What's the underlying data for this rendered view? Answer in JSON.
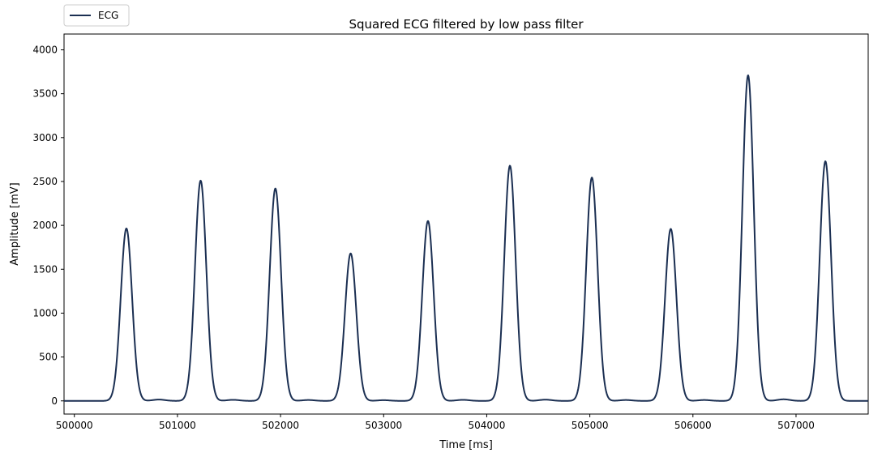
{
  "chart_data": {
    "type": "line",
    "title": "Squared ECG filtered by low pass filter",
    "xlabel": "Time [ms]",
    "ylabel": "Amplitude [mV]",
    "xlim": [
      499900,
      507700
    ],
    "ylim": [
      -150,
      4180
    ],
    "x_ticks": [
      500000,
      501000,
      502000,
      503000,
      504000,
      505000,
      506000,
      507000
    ],
    "y_ticks": [
      0,
      500,
      1000,
      1500,
      2000,
      2500,
      3000,
      3500,
      4000
    ],
    "grid": false,
    "legend": {
      "placement": "top-left",
      "entries": [
        "ECG"
      ]
    },
    "series": [
      {
        "name": "ECG",
        "color": "#1b2f52",
        "baseline": 0,
        "peak_half_width_ms": 55,
        "peaks": [
          {
            "x": 500505,
            "y": 1965
          },
          {
            "x": 501225,
            "y": 2510
          },
          {
            "x": 501950,
            "y": 2420
          },
          {
            "x": 502680,
            "y": 1680
          },
          {
            "x": 503430,
            "y": 2050
          },
          {
            "x": 504225,
            "y": 2680
          },
          {
            "x": 505020,
            "y": 2545
          },
          {
            "x": 505785,
            "y": 1960
          },
          {
            "x": 506535,
            "y": 3710
          },
          {
            "x": 507285,
            "y": 2730
          }
        ],
        "minor_bumps": [
          {
            "x": 500820,
            "y": 15
          },
          {
            "x": 501540,
            "y": 12
          },
          {
            "x": 502270,
            "y": 10
          },
          {
            "x": 503000,
            "y": 8
          },
          {
            "x": 503770,
            "y": 12
          },
          {
            "x": 504570,
            "y": 14
          },
          {
            "x": 505350,
            "y": 10
          },
          {
            "x": 506110,
            "y": 10
          },
          {
            "x": 506880,
            "y": 18
          }
        ]
      }
    ]
  }
}
